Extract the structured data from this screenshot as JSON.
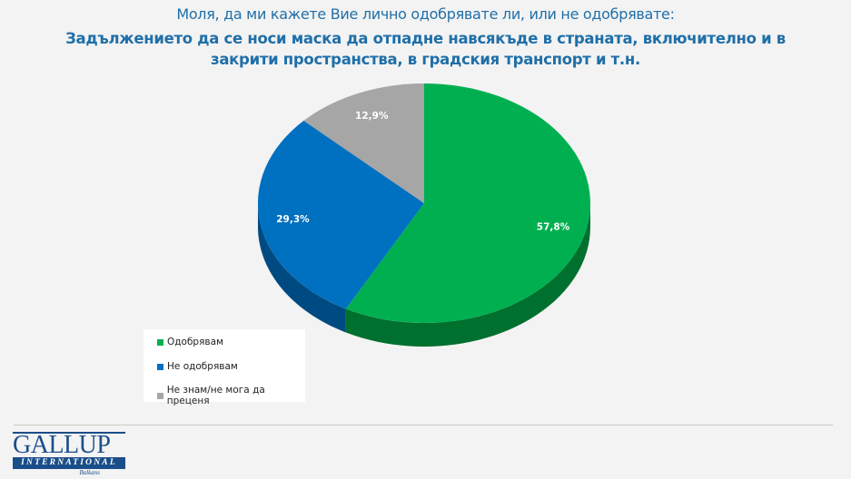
{
  "header": {
    "question": "Моля, да ми кажете Вие лично одобрявате ли, или не одобрявате:",
    "topic": "Задължението да се носи маска да отпадне навсякъде в страната, включително и в закрити пространства, в градския транспорт и т.н."
  },
  "chart_data": {
    "type": "pie",
    "title": "Задължението да се носи маска да отпадне навсякъде в страната, включително и в закрити пространства, в градския транспорт и т.н.",
    "slices": [
      {
        "name": "Одобрявам",
        "value": 57.8,
        "label": "57,8%",
        "color": "#00b050",
        "side": "#00702f"
      },
      {
        "name": "Не одобрявам",
        "value": 29.3,
        "label": "29,3%",
        "color": "#0070c0",
        "side": "#004a82"
      },
      {
        "name": "Не знам/не мога да преценя",
        "value": 12.9,
        "label": "12,9%",
        "color": "#a6a6a6",
        "side": "#707070"
      }
    ],
    "legend_position": "bottom-left"
  },
  "logo": {
    "name": "GALLUP",
    "sub": "INTERNATIONAL",
    "region": "Balkans"
  }
}
